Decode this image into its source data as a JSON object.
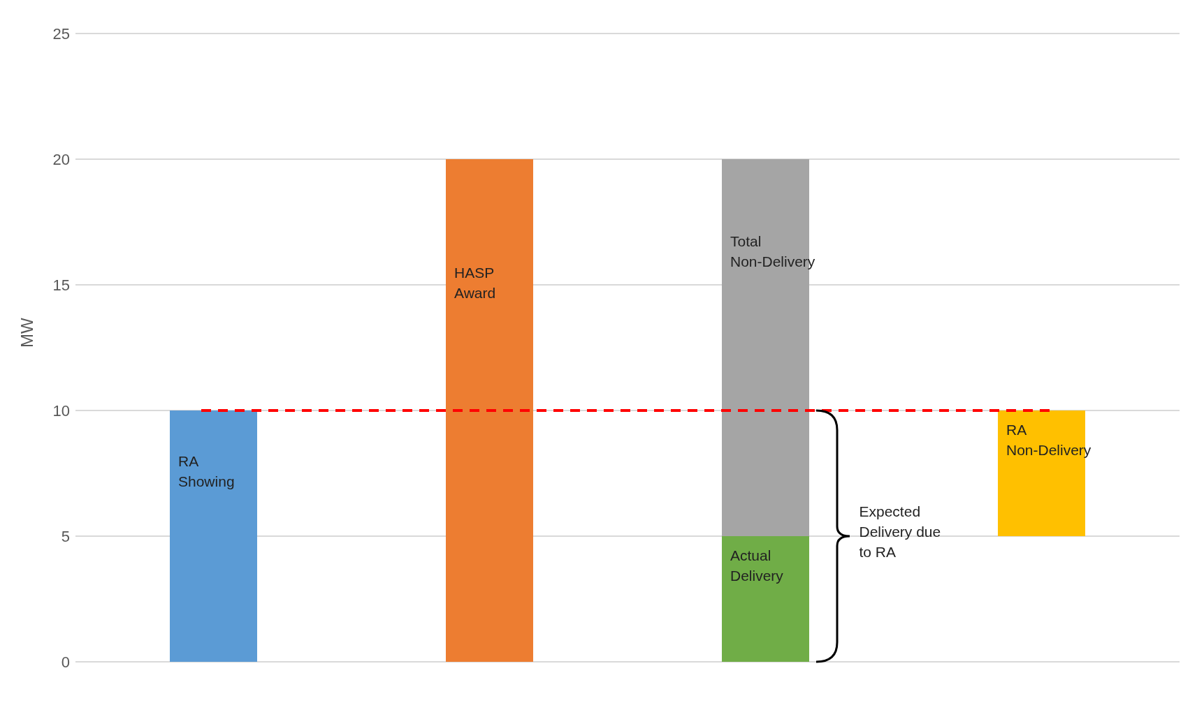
{
  "chart_data": {
    "type": "bar",
    "ylabel": "MW",
    "categories": [
      null,
      null,
      null,
      null
    ],
    "series": [
      {
        "name": "RA Showing",
        "color": "#5b9bd5",
        "values": [
          10,
          null,
          null,
          null
        ]
      },
      {
        "name": "HASP Award",
        "color": "#ed7d31",
        "values": [
          null,
          20,
          null,
          null
        ]
      },
      {
        "name": "Actual Delivery",
        "color": "#70ad47",
        "values": [
          null,
          null,
          5,
          null
        ]
      },
      {
        "name": "Total Non-Delivery",
        "color": "#a5a5a5",
        "values": [
          null,
          null,
          15,
          null
        ],
        "base": [
          null,
          null,
          5,
          null
        ]
      },
      {
        "name": "RA Non-Delivery",
        "color": "#ffc000",
        "values": [
          null,
          null,
          null,
          5
        ],
        "base": [
          null,
          null,
          null,
          5
        ]
      }
    ],
    "ylim": [
      0,
      25
    ],
    "yticks": [
      0,
      5,
      10,
      15,
      20,
      25
    ],
    "grid": "y",
    "ref_lines": [
      {
        "axis": "y",
        "value": 10,
        "color": "#ff0000",
        "line_style": "dashed"
      }
    ],
    "annotations": [
      "Expected Delivery due to RA"
    ]
  }
}
